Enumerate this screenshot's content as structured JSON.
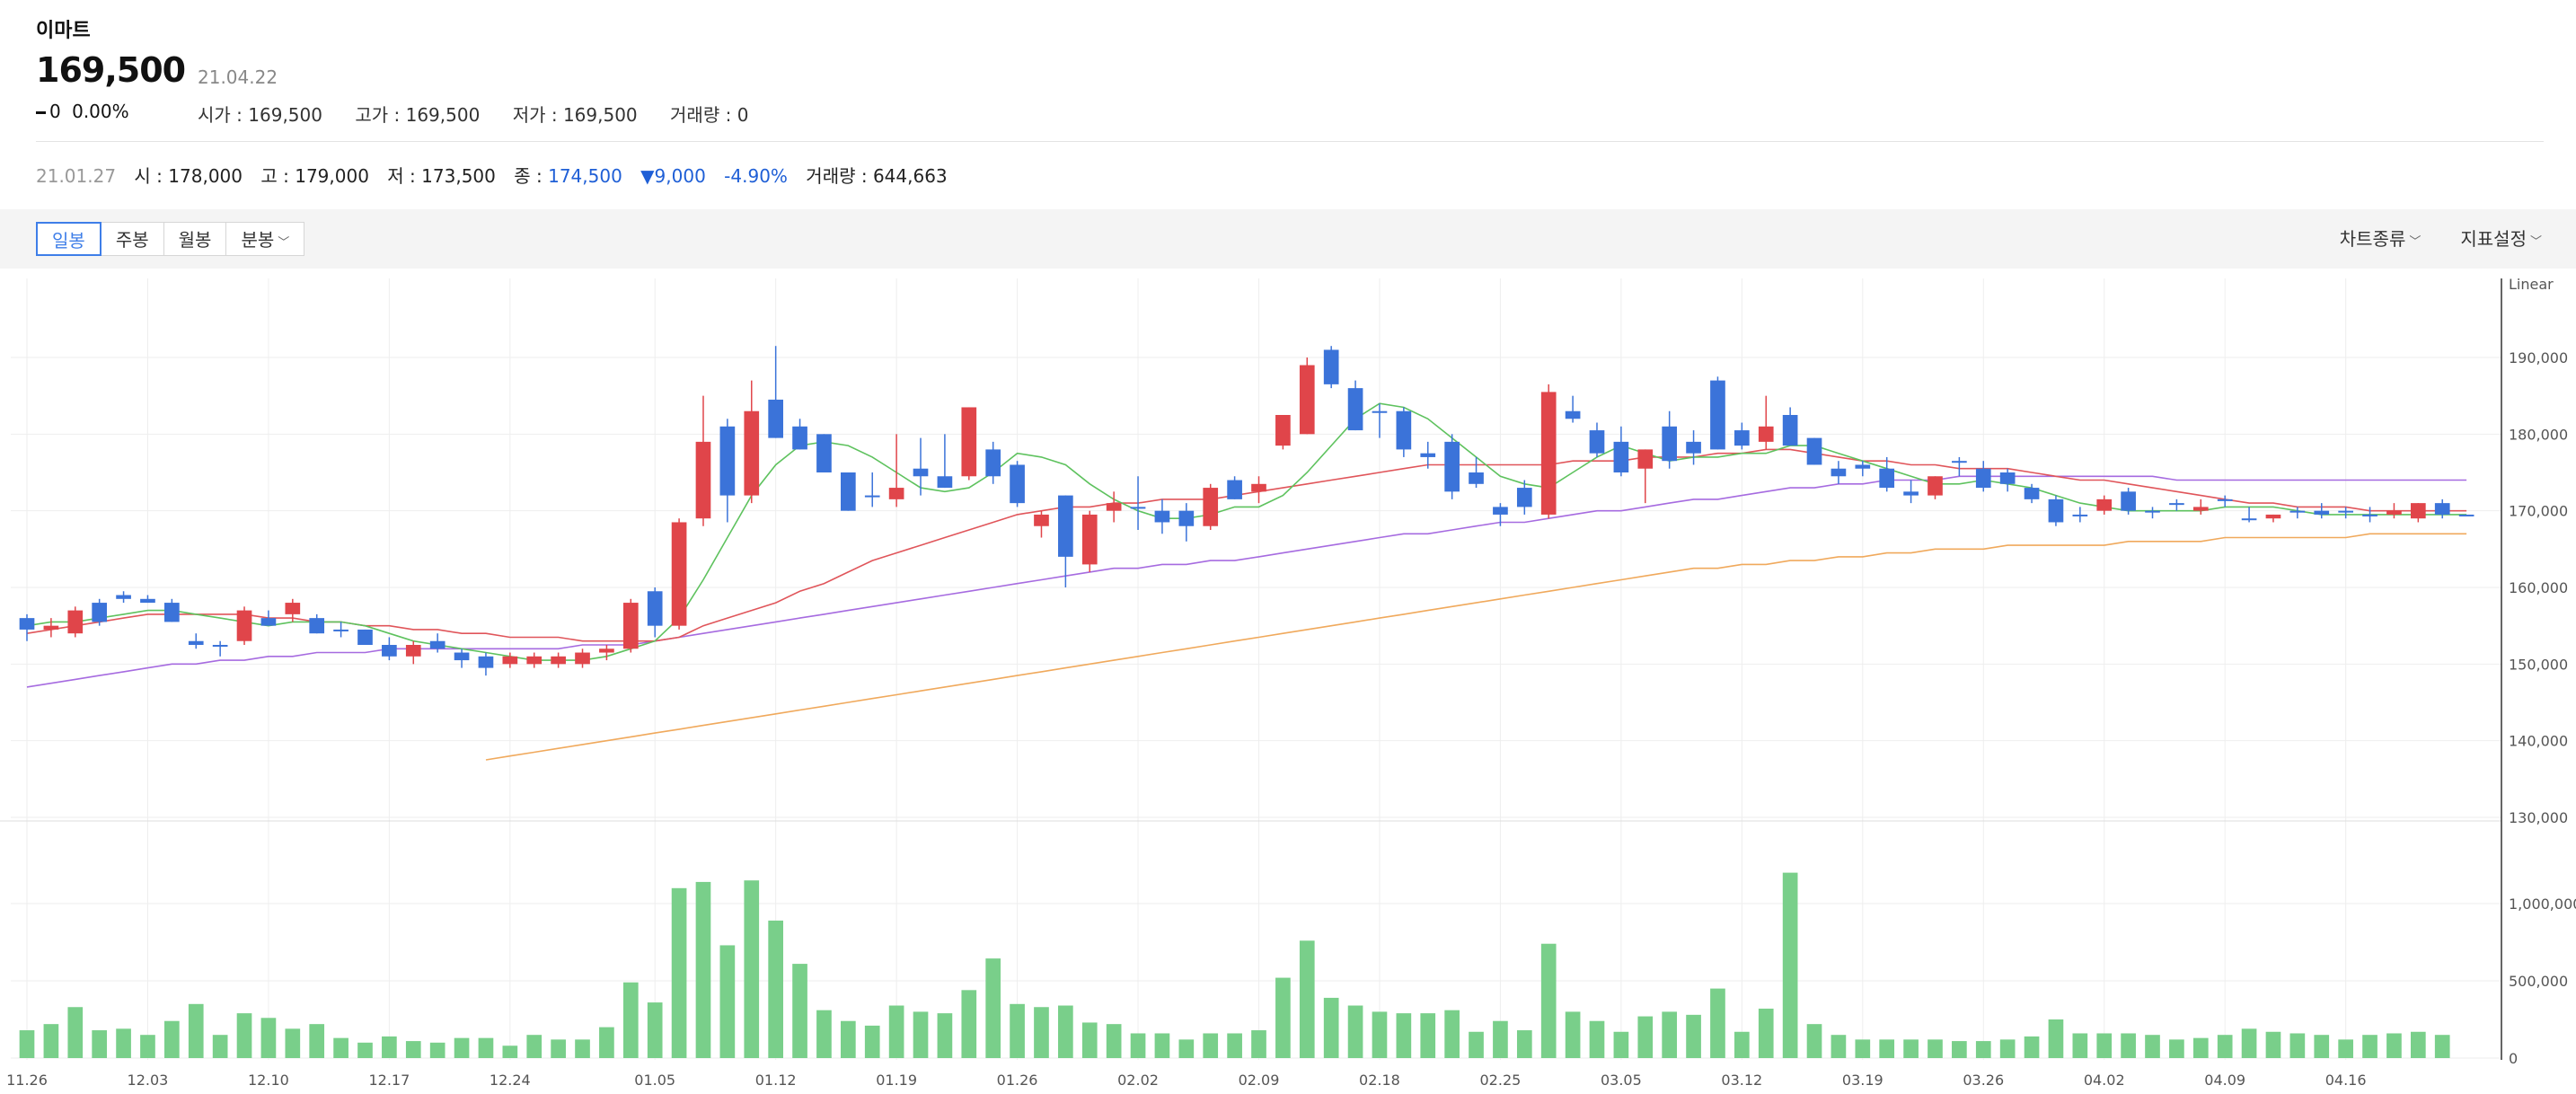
{
  "header": {
    "stock_name": "이마트",
    "price": "169,500",
    "date": "21.04.22",
    "change": "0",
    "change_pct": "0.00%",
    "stats": [
      {
        "label": "시가",
        "value": "169,500"
      },
      {
        "label": "고가",
        "value": "169,500"
      },
      {
        "label": "저가",
        "value": "169,500"
      },
      {
        "label": "거래량",
        "value": "0"
      }
    ]
  },
  "info_row": {
    "date": "21.01.27",
    "open_label": "시",
    "open": "178,000",
    "high_label": "고",
    "high": "179,000",
    "low_label": "저",
    "low": "173,500",
    "close_label": "종",
    "close": "174,500",
    "change": "▼9,000",
    "change_pct": "-4.90%",
    "volume_label": "거래량",
    "volume": "644,663"
  },
  "toolbar": {
    "periods": [
      "일봉",
      "주봉",
      "월봉",
      "분봉"
    ],
    "active_period": "일봉",
    "chart_type_label": "차트종류",
    "indicator_label": "지표설정"
  },
  "colors": {
    "up": "#e0454a",
    "down": "#3b73d9",
    "volume": "#79cf8a",
    "ma5": "#5ec25e",
    "ma20": "#e0555a",
    "ma60": "#a66be0",
    "ma120": "#f0a95c",
    "grid": "#eeeeee",
    "axis_text": "#555555"
  },
  "chart_data": {
    "type": "candlestick",
    "scale_label": "Linear",
    "price_axis": {
      "min": 130000,
      "max": 190000,
      "ticks": [
        "190,000",
        "180,000",
        "170,000",
        "160,000",
        "150,000",
        "140,000",
        "130,000"
      ]
    },
    "volume_axis": {
      "min": 0,
      "max": 1000000,
      "ticks": [
        "1,000,000",
        "500,000",
        "0"
      ]
    },
    "x_labels": [
      "11.26",
      "12.03",
      "12.10",
      "12.17",
      "12.24",
      "01.05",
      "01.12",
      "01.19",
      "01.26",
      "02.02",
      "02.09",
      "02.18",
      "02.25",
      "03.05",
      "03.12",
      "03.19",
      "03.26",
      "04.02",
      "04.09",
      "04.16"
    ],
    "candles": [
      [
        156000,
        156500,
        153000,
        154500,
        180000
      ],
      [
        154500,
        156000,
        153500,
        155000,
        220000
      ],
      [
        154000,
        157500,
        153500,
        157000,
        330000
      ],
      [
        158000,
        158500,
        155000,
        155500,
        180000
      ],
      [
        159000,
        159500,
        158000,
        158500,
        190000
      ],
      [
        158500,
        159000,
        158000,
        158000,
        150000
      ],
      [
        158000,
        158500,
        155500,
        155500,
        240000
      ],
      [
        153000,
        154000,
        152000,
        152500,
        350000
      ],
      [
        152500,
        153000,
        151000,
        152500,
        150000
      ],
      [
        153000,
        157500,
        152500,
        157000,
        290000
      ],
      [
        156000,
        157000,
        155000,
        155000,
        260000
      ],
      [
        156500,
        158500,
        155500,
        158000,
        190000
      ],
      [
        156000,
        156500,
        154000,
        154000,
        220000
      ],
      [
        154500,
        155500,
        153500,
        154500,
        130000
      ],
      [
        154500,
        154500,
        152500,
        152500,
        100000
      ],
      [
        152500,
        153500,
        150500,
        151000,
        140000
      ],
      [
        151000,
        153000,
        150000,
        152500,
        110000
      ],
      [
        153000,
        154000,
        151500,
        152000,
        100000
      ],
      [
        151500,
        152000,
        149500,
        150500,
        130000
      ],
      [
        151000,
        151500,
        148500,
        149500,
        130000
      ],
      [
        150000,
        151500,
        149500,
        151000,
        80000
      ],
      [
        150000,
        151500,
        149500,
        151000,
        150000
      ],
      [
        150000,
        151500,
        149500,
        151000,
        120000
      ],
      [
        150000,
        152000,
        149500,
        151500,
        120000
      ],
      [
        151500,
        152500,
        150500,
        152000,
        200000
      ],
      [
        152000,
        158500,
        151500,
        158000,
        490000
      ],
      [
        159500,
        160000,
        153500,
        155000,
        360000
      ],
      [
        155000,
        169000,
        154500,
        168500,
        1100000
      ],
      [
        169000,
        185000,
        168000,
        179000,
        1140000
      ],
      [
        181000,
        182000,
        168500,
        172000,
        730000
      ],
      [
        172000,
        187000,
        171000,
        183000,
        1150000
      ],
      [
        184500,
        191500,
        179500,
        179500,
        890000
      ],
      [
        181000,
        182000,
        178000,
        178000,
        610000
      ],
      [
        180000,
        180000,
        175000,
        175000,
        310000
      ],
      [
        175000,
        175000,
        170000,
        170000,
        240000
      ],
      [
        172000,
        175000,
        170500,
        172000,
        210000
      ],
      [
        171500,
        180000,
        170500,
        173000,
        340000
      ],
      [
        175500,
        179500,
        172000,
        174500,
        300000
      ],
      [
        174500,
        180000,
        173000,
        173000,
        290000
      ],
      [
        174500,
        183500,
        174000,
        183500,
        440000
      ],
      [
        178000,
        179000,
        173500,
        174500,
        644663
      ],
      [
        176000,
        176500,
        170500,
        171000,
        350000
      ],
      [
        168000,
        170000,
        166500,
        169500,
        330000
      ],
      [
        172000,
        172000,
        160000,
        164000,
        340000
      ],
      [
        163000,
        170000,
        162000,
        169500,
        230000
      ],
      [
        170000,
        172500,
        168500,
        171000,
        220000
      ],
      [
        170500,
        174500,
        167500,
        170500,
        160000
      ],
      [
        170000,
        171500,
        167000,
        168500,
        160000
      ],
      [
        170000,
        171000,
        166000,
        168000,
        120000
      ],
      [
        168000,
        173500,
        167500,
        173000,
        160000
      ],
      [
        174000,
        174500,
        171500,
        171500,
        160000
      ],
      [
        172500,
        174500,
        171000,
        173500,
        180000
      ],
      [
        178500,
        182500,
        178000,
        182500,
        520000
      ],
      [
        180000,
        190000,
        180000,
        189000,
        760000
      ],
      [
        191000,
        191500,
        186000,
        186500,
        390000
      ],
      [
        186000,
        187000,
        180500,
        180500,
        340000
      ],
      [
        183000,
        184000,
        179500,
        183000,
        300000
      ],
      [
        183000,
        183500,
        177000,
        178000,
        290000
      ],
      [
        177500,
        179000,
        175500,
        177000,
        290000
      ],
      [
        179000,
        180000,
        171500,
        172500,
        310000
      ],
      [
        175000,
        177000,
        173000,
        173500,
        170000
      ],
      [
        170500,
        171000,
        168000,
        169500,
        240000
      ],
      [
        173000,
        174000,
        169500,
        170500,
        180000
      ],
      [
        169500,
        186500,
        169000,
        185500,
        740000
      ],
      [
        183000,
        185000,
        181500,
        182000,
        300000
      ],
      [
        180500,
        181500,
        177000,
        177500,
        240000
      ],
      [
        179000,
        181000,
        174500,
        175000,
        170000
      ],
      [
        175500,
        178000,
        171000,
        178000,
        270000
      ],
      [
        181000,
        183000,
        175500,
        176500,
        300000
      ],
      [
        179000,
        180500,
        176000,
        177500,
        280000
      ],
      [
        187000,
        187500,
        178000,
        178000,
        450000
      ],
      [
        180500,
        181500,
        178000,
        178500,
        170000
      ],
      [
        179000,
        185000,
        178000,
        181000,
        320000
      ],
      [
        182500,
        183500,
        178500,
        178500,
        1200000
      ],
      [
        179500,
        179500,
        176000,
        176000,
        220000
      ],
      [
        175500,
        176500,
        173500,
        174500,
        150000
      ],
      [
        176000,
        176500,
        174500,
        175500,
        120000
      ],
      [
        175500,
        177000,
        172500,
        173000,
        120000
      ],
      [
        172500,
        174000,
        171000,
        172000,
        120000
      ],
      [
        172000,
        174500,
        171500,
        174500,
        120000
      ],
      [
        176500,
        177000,
        174500,
        176500,
        110000
      ],
      [
        175500,
        176500,
        172500,
        173000,
        110000
      ],
      [
        175000,
        175500,
        172500,
        173500,
        120000
      ],
      [
        173000,
        173500,
        171000,
        171500,
        140000
      ],
      [
        171500,
        172000,
        168000,
        168500,
        250000
      ],
      [
        169500,
        170500,
        168500,
        169500,
        160000
      ],
      [
        170000,
        172000,
        169500,
        171500,
        160000
      ],
      [
        172500,
        173000,
        169500,
        170000,
        160000
      ],
      [
        170000,
        170500,
        169000,
        170000,
        150000
      ],
      [
        171000,
        171500,
        170000,
        171000,
        120000
      ],
      [
        170000,
        171500,
        169500,
        170500,
        130000
      ],
      [
        171500,
        172000,
        170500,
        171500,
        150000
      ],
      [
        169000,
        170500,
        168500,
        169000,
        190000
      ],
      [
        169000,
        169500,
        168500,
        169500,
        170000
      ],
      [
        170000,
        170500,
        169000,
        170000,
        160000
      ],
      [
        170000,
        171000,
        169000,
        169500,
        150000
      ],
      [
        170000,
        170500,
        169000,
        170000,
        120000
      ],
      [
        169500,
        170500,
        168500,
        169500,
        150000
      ],
      [
        169500,
        171000,
        169000,
        170000,
        160000
      ],
      [
        169000,
        171000,
        168500,
        171000,
        170000
      ],
      [
        171000,
        171500,
        169000,
        169500,
        150000
      ],
      [
        169500,
        169500,
        169500,
        169500,
        0
      ]
    ],
    "ma5": [
      155000,
      155500,
      155500,
      156000,
      156500,
      157000,
      157000,
      156500,
      156000,
      155500,
      155000,
      155500,
      155500,
      155500,
      155000,
      154000,
      153000,
      152500,
      152000,
      151500,
      151000,
      150500,
      150500,
      150500,
      151000,
      152000,
      153000,
      156000,
      161000,
      166500,
      172000,
      176000,
      178500,
      179000,
      178500,
      177000,
      175000,
      173000,
      172500,
      173000,
      175000,
      177500,
      177000,
      176000,
      173500,
      171500,
      170000,
      169000,
      169000,
      169500,
      170500,
      170500,
      172000,
      175000,
      178500,
      182000,
      184000,
      183500,
      182000,
      179500,
      177000,
      174500,
      173500,
      173000,
      175000,
      177000,
      178500,
      177500,
      176500,
      177000,
      177000,
      177500,
      177500,
      178500,
      178500,
      177500,
      176500,
      175500,
      174500,
      173500,
      173500,
      174000,
      173500,
      173000,
      172000,
      171000,
      170500,
      170000,
      170000,
      170000,
      170000,
      170500,
      170500,
      170500,
      170000,
      169500,
      169500,
      169500,
      169500,
      169500,
      169500,
      169500
    ],
    "ma20": [
      154000,
      154500,
      155000,
      155500,
      156000,
      156500,
      156500,
      156500,
      156500,
      156500,
      156000,
      156000,
      155500,
      155500,
      155000,
      155000,
      154500,
      154500,
      154000,
      154000,
      153500,
      153500,
      153500,
      153000,
      153000,
      153000,
      153000,
      153500,
      155000,
      156000,
      157000,
      158000,
      159500,
      160500,
      162000,
      163500,
      164500,
      165500,
      166500,
      167500,
      168500,
      169500,
      170000,
      170500,
      170500,
      171000,
      171000,
      171500,
      171500,
      171500,
      172000,
      172500,
      173000,
      173500,
      174000,
      174500,
      175000,
      175500,
      176000,
      176000,
      176000,
      176000,
      176000,
      176000,
      176500,
      176500,
      176500,
      177000,
      177000,
      177000,
      177500,
      177500,
      178000,
      178000,
      177500,
      177000,
      176500,
      176500,
      176000,
      176000,
      175500,
      175500,
      175500,
      175000,
      174500,
      174000,
      174000,
      173500,
      173000,
      172500,
      172000,
      171500,
      171000,
      171000,
      170500,
      170500,
      170500,
      170000,
      170000,
      170000,
      170000,
      170000
    ],
    "ma60": [
      147000,
      147500,
      148000,
      148500,
      149000,
      149500,
      150000,
      150000,
      150500,
      150500,
      151000,
      151000,
      151500,
      151500,
      151500,
      152000,
      152000,
      152000,
      152000,
      152000,
      152000,
      152000,
      152000,
      152500,
      152500,
      152500,
      153000,
      153500,
      154000,
      154500,
      155000,
      155500,
      156000,
      156500,
      157000,
      157500,
      158000,
      158500,
      159000,
      159500,
      160000,
      160500,
      161000,
      161500,
      162000,
      162500,
      162500,
      163000,
      163000,
      163500,
      163500,
      164000,
      164500,
      165000,
      165500,
      166000,
      166500,
      167000,
      167000,
      167500,
      168000,
      168500,
      168500,
      169000,
      169500,
      170000,
      170000,
      170500,
      171000,
      171500,
      171500,
      172000,
      172500,
      173000,
      173000,
      173500,
      173500,
      174000,
      174000,
      174000,
      174500,
      174500,
      174500,
      174500,
      174500,
      174500,
      174500,
      174500,
      174500,
      174000,
      174000,
      174000,
      174000,
      174000,
      174000,
      174000,
      174000,
      174000,
      174000,
      174000,
      174000,
      174000
    ],
    "ma120": [
      null,
      null,
      null,
      null,
      null,
      null,
      null,
      null,
      null,
      null,
      null,
      null,
      null,
      null,
      null,
      null,
      null,
      null,
      null,
      137500,
      138000,
      138500,
      139000,
      139500,
      140000,
      140500,
      141000,
      141500,
      142000,
      142500,
      143000,
      143500,
      144000,
      144500,
      145000,
      145500,
      146000,
      146500,
      147000,
      147500,
      148000,
      148500,
      149000,
      149500,
      150000,
      150500,
      151000,
      151500,
      152000,
      152500,
      153000,
      153500,
      154000,
      154500,
      155000,
      155500,
      156000,
      156500,
      157000,
      157500,
      158000,
      158500,
      159000,
      159500,
      160000,
      160500,
      161000,
      161500,
      162000,
      162500,
      162500,
      163000,
      163000,
      163500,
      163500,
      164000,
      164000,
      164500,
      164500,
      165000,
      165000,
      165000,
      165500,
      165500,
      165500,
      165500,
      165500,
      166000,
      166000,
      166000,
      166000,
      166500,
      166500,
      166500,
      166500,
      166500,
      166500,
      167000,
      167000,
      167000,
      167000,
      167000
    ]
  }
}
